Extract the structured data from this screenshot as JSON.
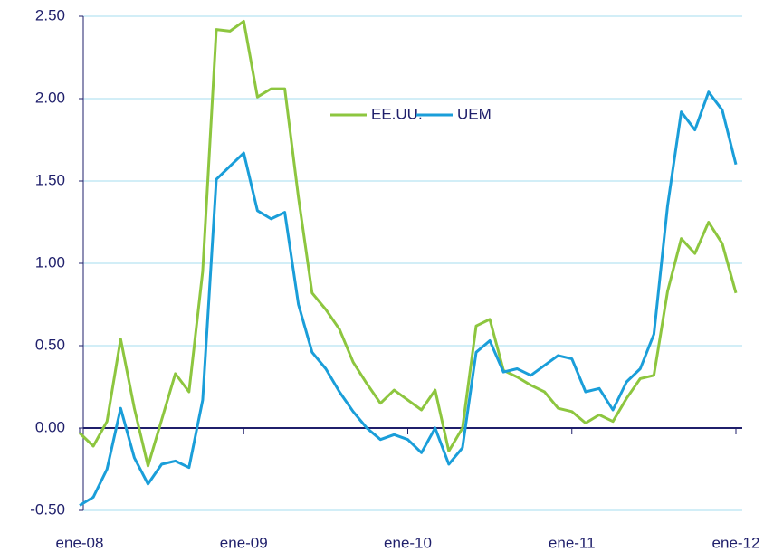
{
  "chart_data": {
    "type": "line",
    "categories": [
      "ene-08",
      null,
      null,
      null,
      null,
      null,
      null,
      null,
      null,
      null,
      null,
      null,
      "ene-09",
      null,
      null,
      null,
      null,
      null,
      null,
      null,
      null,
      null,
      null,
      null,
      "ene-10",
      null,
      null,
      null,
      null,
      null,
      null,
      null,
      null,
      null,
      null,
      null,
      "ene-11",
      null,
      null,
      null,
      null,
      null,
      null,
      null,
      null,
      null,
      null,
      null,
      "ene-12"
    ],
    "series": [
      {
        "name": "EE.UU.",
        "color": "#8dc63f",
        "values": [
          -0.03,
          -0.11,
          0.04,
          0.54,
          0.12,
          -0.23,
          0.05,
          0.33,
          0.22,
          0.95,
          2.42,
          2.41,
          2.47,
          2.01,
          2.06,
          2.06,
          1.4,
          0.82,
          0.72,
          0.6,
          0.4,
          0.27,
          0.15,
          0.23,
          0.17,
          0.11,
          0.23,
          -0.14,
          0.0,
          0.62,
          0.66,
          0.35,
          0.31,
          0.26,
          0.22,
          0.12,
          0.1,
          0.03,
          0.08,
          0.04,
          0.18,
          0.3,
          0.32,
          0.83,
          1.15,
          1.06,
          1.25,
          1.12,
          0.82
        ]
      },
      {
        "name": "UEM",
        "color": "#1a9ed9",
        "values": [
          -0.47,
          -0.42,
          -0.25,
          0.12,
          -0.18,
          -0.34,
          -0.22,
          -0.2,
          -0.24,
          0.17,
          1.51,
          1.59,
          1.67,
          1.32,
          1.27,
          1.31,
          0.75,
          0.46,
          0.36,
          0.22,
          0.1,
          0.0,
          -0.07,
          -0.04,
          -0.07,
          -0.15,
          0.0,
          -0.22,
          -0.12,
          0.46,
          0.53,
          0.34,
          0.36,
          0.32,
          0.38,
          0.44,
          0.42,
          0.22,
          0.24,
          0.11,
          0.28,
          0.36,
          0.57,
          1.35,
          1.92,
          1.81,
          2.04,
          1.93,
          1.6
        ]
      }
    ],
    "ylim": [
      -0.5,
      2.5
    ],
    "yticks": [
      {
        "value": -0.5,
        "label": "-0.50"
      },
      {
        "value": 0,
        "label": "0.00"
      },
      {
        "value": 0.5,
        "label": "0.50"
      },
      {
        "value": 1,
        "label": "1.00"
      },
      {
        "value": 1.5,
        "label": "1.50"
      },
      {
        "value": 2,
        "label": "2.00"
      },
      {
        "value": 2.5,
        "label": "2.50"
      }
    ],
    "grid": true,
    "legend": "top"
  }
}
